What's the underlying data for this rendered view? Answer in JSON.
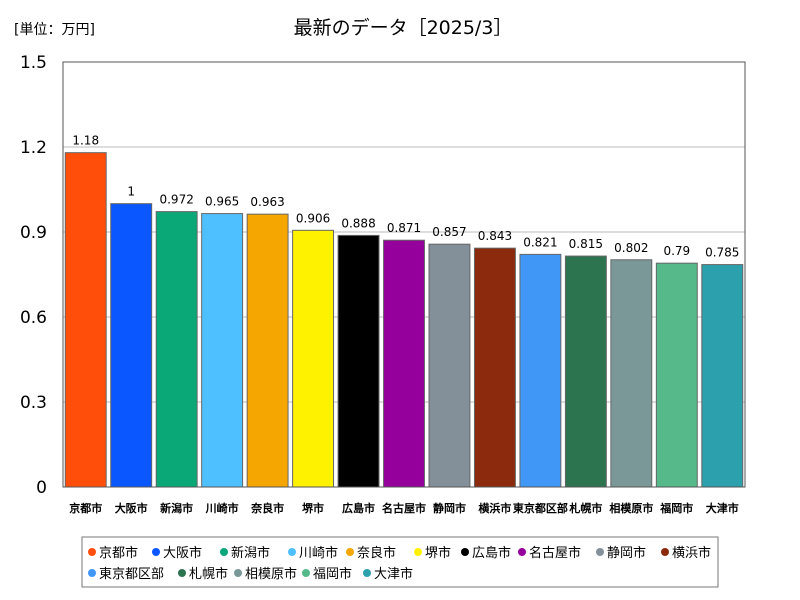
{
  "unit_label": "[単位：万円]",
  "chart_data": {
    "type": "bar",
    "title": "最新のデータ［2025/3］",
    "ylim": [
      0,
      1.5
    ],
    "yticks": [
      "0",
      "0.3",
      "0.6",
      "0.9",
      "1.2",
      "1.5"
    ],
    "ytick_values": [
      0,
      0.3,
      0.6,
      0.9,
      1.2,
      1.5
    ],
    "grid": true,
    "legend": "bottom",
    "categories": [
      "京都市",
      "大阪市",
      "新潟市",
      "川崎市",
      "奈良市",
      "堺市",
      "広島市",
      "名古屋市",
      "静岡市",
      "横浜市",
      "東京都区部",
      "札幌市",
      "相模原市",
      "福岡市",
      "大津市"
    ],
    "values": [
      1.18,
      1,
      0.972,
      0.965,
      0.963,
      0.906,
      0.888,
      0.871,
      0.857,
      0.843,
      0.821,
      0.815,
      0.802,
      0.79,
      0.785
    ],
    "value_labels": [
      "1.18",
      "1",
      "0.972",
      "0.965",
      "0.963",
      "0.906",
      "0.888",
      "0.871",
      "0.857",
      "0.843",
      "0.821",
      "0.815",
      "0.802",
      "0.79",
      "0.785"
    ],
    "colors": [
      "#ff4d0a",
      "#0b57ff",
      "#0aa877",
      "#4fc0ff",
      "#f6a600",
      "#fff200",
      "#000000",
      "#95009c",
      "#849099",
      "#8b2a0c",
      "#4197f5",
      "#2c7450",
      "#7b9898",
      "#55b98a",
      "#2ca0ad"
    ]
  }
}
